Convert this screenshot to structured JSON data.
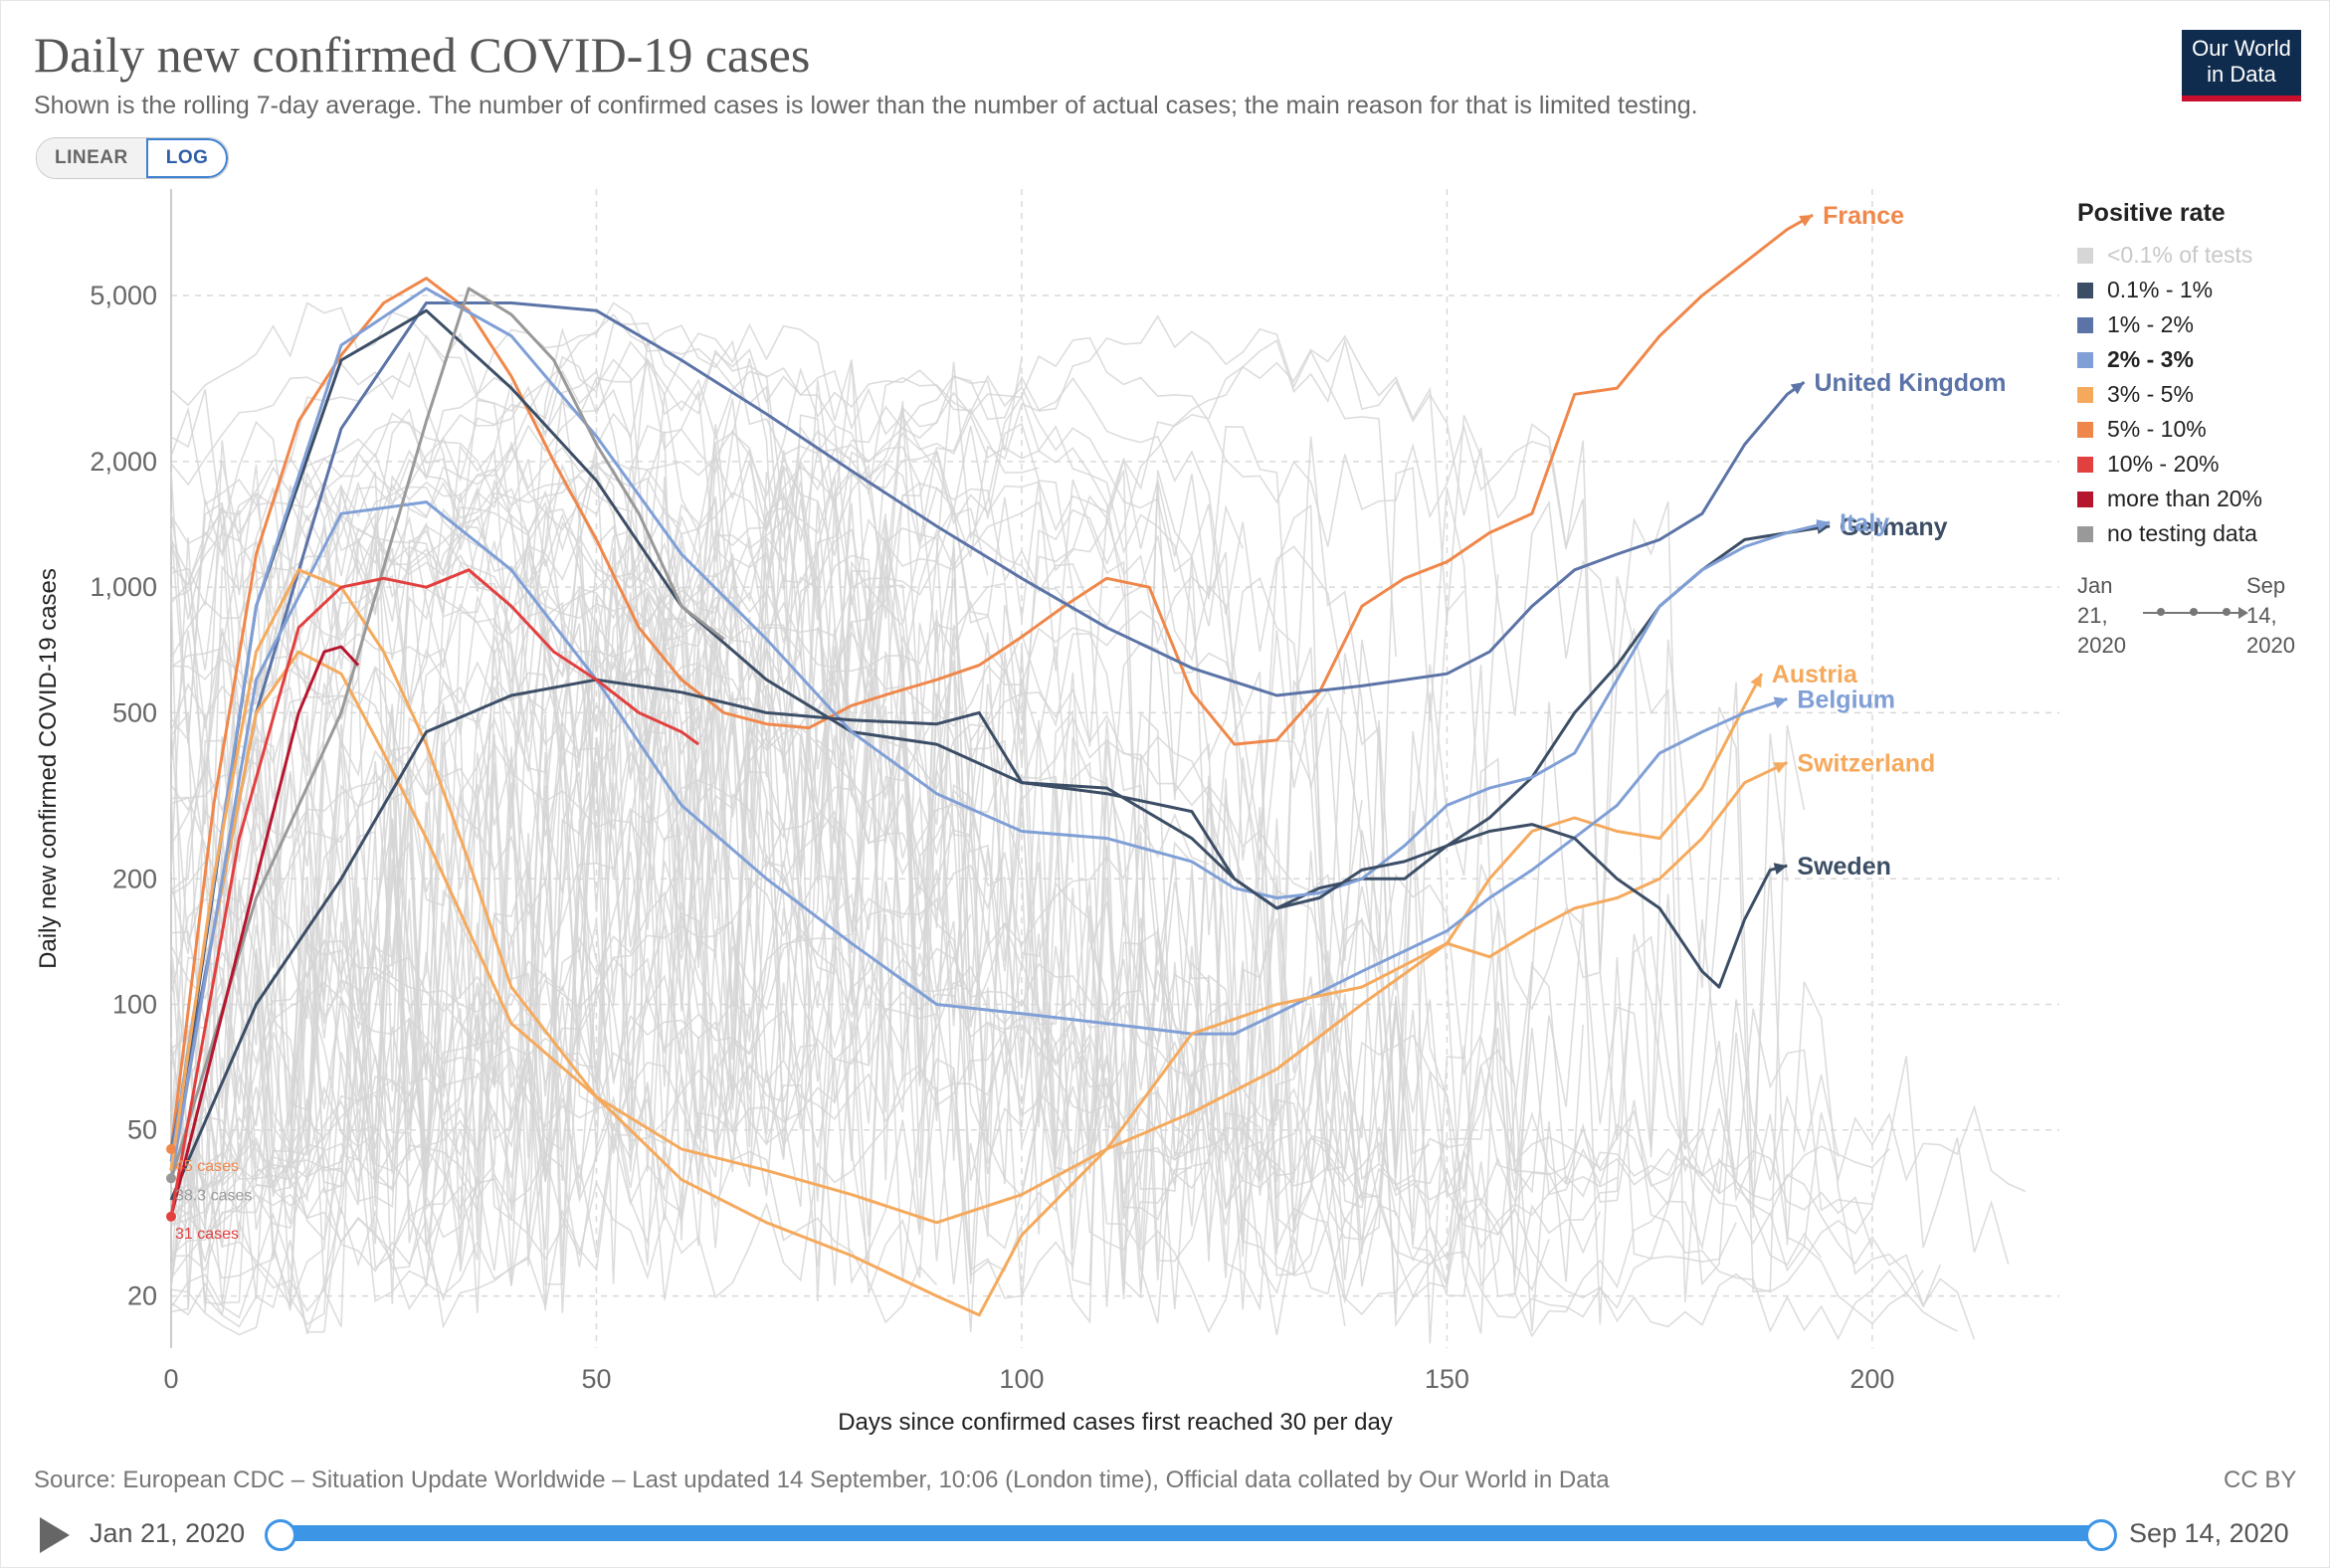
{
  "header": {
    "title": "Daily new confirmed COVID-19 cases",
    "subtitle": "Shown is the rolling 7-day average. The number of confirmed cases is lower than the number of actual cases; the main reason for that is limited testing.",
    "logo_line1": "Our World",
    "logo_line2": "in Data"
  },
  "scale_toggle": {
    "linear_label": "LINEAR",
    "log_label": "LOG",
    "selected": "LOG"
  },
  "legend": {
    "title": "Positive rate",
    "items": [
      {
        "label": "<0.1% of tests",
        "color": "#d6d6d6",
        "muted": true
      },
      {
        "label": "0.1% - 1%",
        "color": "#3c4e66"
      },
      {
        "label": "1% - 2%",
        "color": "#5b73a6"
      },
      {
        "label": "2% - 3%",
        "color": "#7f9fd6",
        "bold": true
      },
      {
        "label": "3% - 5%",
        "color": "#f5a95c"
      },
      {
        "label": "5% - 10%",
        "color": "#f0874a"
      },
      {
        "label": "10% - 20%",
        "color": "#e2403f"
      },
      {
        "label": "more than 20%",
        "color": "#b5162e"
      },
      {
        "label": "no testing data",
        "color": "#999999"
      }
    ],
    "timeline_start": "Jan\n21,\n2020",
    "timeline_end": "Sep\n14,\n2020"
  },
  "footer": {
    "source": "Source: European CDC – Situation Update Worldwide – Last updated 14 September, 10:06 (London time), Official data collated by Our World in Data",
    "license": "CC BY",
    "play_icon": "play-icon",
    "date_start": "Jan 21, 2020",
    "date_end": "Sep 14, 2020",
    "slider_start_fraction": 0,
    "slider_end_fraction": 1
  },
  "chart_data": {
    "type": "line",
    "xlabel": "Days since confirmed cases first reached 30 per day",
    "ylabel": "Daily new confirmed COVID-19 cases",
    "yscale": "log",
    "xlim": [
      0,
      222
    ],
    "ylim": [
      15,
      9000
    ],
    "xticks": [
      0,
      50,
      100,
      150,
      200
    ],
    "yticks": [
      20,
      50,
      100,
      200,
      500,
      1000,
      2000,
      5000
    ],
    "ytick_labels": [
      "20",
      "50",
      "100",
      "200",
      "500",
      "1,000",
      "2,000",
      "5,000"
    ],
    "grid": true,
    "legend_position": "right",
    "start_annotations": [
      {
        "label": "45 cases",
        "y": 45,
        "color": "#f0874a"
      },
      {
        "label": "38.3 cases",
        "y": 38.3,
        "color": "#999999"
      },
      {
        "label": "31 cases",
        "y": 31,
        "color": "#e2403f"
      }
    ],
    "series": [
      {
        "name": "France",
        "color": "#f0874a",
        "label_color": "#f0874a",
        "points": [
          [
            0,
            45
          ],
          [
            5,
            300
          ],
          [
            10,
            1200
          ],
          [
            15,
            2500
          ],
          [
            20,
            3600
          ],
          [
            25,
            4800
          ],
          [
            30,
            5500
          ],
          [
            35,
            4600
          ],
          [
            40,
            3200
          ],
          [
            45,
            2000
          ],
          [
            50,
            1300
          ],
          [
            55,
            800
          ],
          [
            60,
            600
          ],
          [
            65,
            500
          ],
          [
            70,
            470
          ],
          [
            75,
            460
          ],
          [
            80,
            520
          ],
          [
            85,
            560
          ],
          [
            90,
            600
          ],
          [
            95,
            650
          ],
          [
            100,
            760
          ],
          [
            105,
            900
          ],
          [
            110,
            1050
          ],
          [
            115,
            1000
          ],
          [
            120,
            560
          ],
          [
            125,
            420
          ],
          [
            130,
            430
          ],
          [
            135,
            560
          ],
          [
            140,
            900
          ],
          [
            145,
            1050
          ],
          [
            150,
            1150
          ],
          [
            155,
            1350
          ],
          [
            160,
            1500
          ],
          [
            165,
            2900
          ],
          [
            170,
            3000
          ],
          [
            175,
            4000
          ],
          [
            180,
            5000
          ],
          [
            185,
            6000
          ],
          [
            190,
            7200
          ],
          [
            193,
            7800
          ]
        ]
      },
      {
        "name": "United Kingdom",
        "color": "#5b73a6",
        "label_color": "#5b73a6",
        "points": [
          [
            0,
            45
          ],
          [
            10,
            500
          ],
          [
            20,
            2400
          ],
          [
            30,
            4800
          ],
          [
            40,
            4800
          ],
          [
            50,
            4600
          ],
          [
            60,
            3500
          ],
          [
            70,
            2600
          ],
          [
            80,
            1900
          ],
          [
            90,
            1400
          ],
          [
            100,
            1050
          ],
          [
            110,
            800
          ],
          [
            120,
            640
          ],
          [
            130,
            550
          ],
          [
            140,
            580
          ],
          [
            150,
            620
          ],
          [
            155,
            700
          ],
          [
            160,
            900
          ],
          [
            165,
            1100
          ],
          [
            170,
            1200
          ],
          [
            175,
            1300
          ],
          [
            180,
            1500
          ],
          [
            185,
            2200
          ],
          [
            190,
            2900
          ],
          [
            192,
            3100
          ]
        ]
      },
      {
        "name": "Germany",
        "color": "#3c4e66",
        "label_color": "#3c4e66",
        "points": [
          [
            0,
            40
          ],
          [
            10,
            900
          ],
          [
            20,
            3500
          ],
          [
            30,
            4600
          ],
          [
            40,
            3000
          ],
          [
            50,
            1800
          ],
          [
            60,
            900
          ],
          [
            70,
            600
          ],
          [
            80,
            450
          ],
          [
            90,
            420
          ],
          [
            100,
            340
          ],
          [
            110,
            330
          ],
          [
            120,
            250
          ],
          [
            125,
            200
          ],
          [
            130,
            170
          ],
          [
            135,
            190
          ],
          [
            140,
            200
          ],
          [
            145,
            200
          ],
          [
            150,
            240
          ],
          [
            155,
            280
          ],
          [
            160,
            350
          ],
          [
            165,
            500
          ],
          [
            170,
            650
          ],
          [
            175,
            900
          ],
          [
            180,
            1100
          ],
          [
            185,
            1300
          ],
          [
            190,
            1350
          ],
          [
            195,
            1400
          ]
        ]
      },
      {
        "name": "Italy",
        "color": "#7f9fd6",
        "label_color": "#7f9fd6",
        "points": [
          [
            0,
            42
          ],
          [
            10,
            900
          ],
          [
            20,
            3800
          ],
          [
            30,
            5200
          ],
          [
            40,
            4000
          ],
          [
            50,
            2300
          ],
          [
            60,
            1200
          ],
          [
            70,
            750
          ],
          [
            80,
            450
          ],
          [
            90,
            320
          ],
          [
            100,
            260
          ],
          [
            110,
            250
          ],
          [
            120,
            220
          ],
          [
            125,
            190
          ],
          [
            130,
            180
          ],
          [
            135,
            185
          ],
          [
            140,
            200
          ],
          [
            145,
            240
          ],
          [
            150,
            300
          ],
          [
            155,
            330
          ],
          [
            160,
            350
          ],
          [
            165,
            400
          ],
          [
            170,
            600
          ],
          [
            175,
            900
          ],
          [
            180,
            1100
          ],
          [
            185,
            1250
          ],
          [
            190,
            1350
          ],
          [
            195,
            1430
          ]
        ]
      },
      {
        "name": "Austria",
        "color": "#f5a95c",
        "label_color": "#f5a95c",
        "points": [
          [
            0,
            38
          ],
          [
            5,
            150
          ],
          [
            10,
            500
          ],
          [
            15,
            700
          ],
          [
            20,
            620
          ],
          [
            25,
            400
          ],
          [
            30,
            250
          ],
          [
            35,
            150
          ],
          [
            40,
            90
          ],
          [
            50,
            60
          ],
          [
            60,
            45
          ],
          [
            70,
            40
          ],
          [
            80,
            35
          ],
          [
            90,
            30
          ],
          [
            100,
            35
          ],
          [
            110,
            45
          ],
          [
            120,
            55
          ],
          [
            130,
            70
          ],
          [
            140,
            100
          ],
          [
            150,
            140
          ],
          [
            155,
            200
          ],
          [
            160,
            260
          ],
          [
            165,
            280
          ],
          [
            170,
            260
          ],
          [
            175,
            250
          ],
          [
            180,
            330
          ],
          [
            185,
            520
          ],
          [
            187,
            620
          ]
        ]
      },
      {
        "name": "Belgium",
        "color": "#7f9fd6",
        "label_color": "#7f9fd6",
        "points": [
          [
            0,
            38
          ],
          [
            10,
            600
          ],
          [
            20,
            1500
          ],
          [
            30,
            1600
          ],
          [
            40,
            1100
          ],
          [
            50,
            600
          ],
          [
            60,
            300
          ],
          [
            70,
            200
          ],
          [
            80,
            140
          ],
          [
            90,
            100
          ],
          [
            100,
            95
          ],
          [
            110,
            90
          ],
          [
            120,
            85
          ],
          [
            125,
            85
          ],
          [
            130,
            95
          ],
          [
            140,
            120
          ],
          [
            150,
            150
          ],
          [
            155,
            180
          ],
          [
            160,
            210
          ],
          [
            170,
            300
          ],
          [
            175,
            400
          ],
          [
            180,
            450
          ],
          [
            185,
            500
          ],
          [
            190,
            540
          ]
        ]
      },
      {
        "name": "Switzerland",
        "color": "#f5a95c",
        "label_color": "#f5a95c",
        "points": [
          [
            0,
            40
          ],
          [
            5,
            200
          ],
          [
            10,
            700
          ],
          [
            15,
            1100
          ],
          [
            20,
            1000
          ],
          [
            25,
            700
          ],
          [
            30,
            420
          ],
          [
            35,
            220
          ],
          [
            40,
            110
          ],
          [
            50,
            60
          ],
          [
            60,
            38
          ],
          [
            70,
            30
          ],
          [
            80,
            25
          ],
          [
            90,
            20
          ],
          [
            95,
            18
          ],
          [
            100,
            28
          ],
          [
            110,
            45
          ],
          [
            120,
            85
          ],
          [
            130,
            100
          ],
          [
            140,
            110
          ],
          [
            150,
            140
          ],
          [
            155,
            130
          ],
          [
            160,
            150
          ],
          [
            165,
            170
          ],
          [
            170,
            180
          ],
          [
            175,
            200
          ],
          [
            180,
            250
          ],
          [
            185,
            340
          ],
          [
            190,
            380
          ]
        ]
      },
      {
        "name": "Sweden",
        "color": "#3c4e66",
        "label_color": "#3c4e66",
        "points": [
          [
            0,
            34
          ],
          [
            10,
            100
          ],
          [
            20,
            200
          ],
          [
            30,
            450
          ],
          [
            40,
            550
          ],
          [
            50,
            600
          ],
          [
            60,
            560
          ],
          [
            70,
            500
          ],
          [
            80,
            480
          ],
          [
            90,
            470
          ],
          [
            95,
            500
          ],
          [
            100,
            340
          ],
          [
            110,
            320
          ],
          [
            120,
            290
          ],
          [
            125,
            200
          ],
          [
            130,
            170
          ],
          [
            135,
            180
          ],
          [
            140,
            210
          ],
          [
            145,
            220
          ],
          [
            150,
            240
          ],
          [
            155,
            260
          ],
          [
            160,
            270
          ],
          [
            165,
            250
          ],
          [
            170,
            200
          ],
          [
            175,
            170
          ],
          [
            180,
            120
          ],
          [
            182,
            110
          ],
          [
            185,
            160
          ],
          [
            188,
            210
          ],
          [
            190,
            215
          ]
        ]
      },
      {
        "name": "",
        "color": "#999999",
        "label_color": "#999999",
        "points": [
          [
            0,
            38
          ],
          [
            10,
            180
          ],
          [
            20,
            500
          ],
          [
            30,
            2500
          ],
          [
            35,
            5200
          ],
          [
            40,
            4500
          ],
          [
            45,
            3500
          ],
          [
            50,
            2200
          ],
          [
            55,
            1500
          ],
          [
            60,
            900
          ],
          [
            65,
            750
          ]
        ]
      },
      {
        "name": "",
        "color": "#b5162e",
        "label_color": "#b5162e",
        "points": [
          [
            0,
            31
          ],
          [
            10,
            200
          ],
          [
            15,
            500
          ],
          [
            18,
            700
          ],
          [
            20,
            720
          ],
          [
            22,
            650
          ]
        ]
      },
      {
        "name": "",
        "color": "#e2403f",
        "label_color": "#e2403f",
        "points": [
          [
            0,
            31
          ],
          [
            8,
            250
          ],
          [
            15,
            800
          ],
          [
            20,
            1000
          ],
          [
            25,
            1050
          ],
          [
            30,
            1000
          ],
          [
            35,
            1100
          ],
          [
            40,
            900
          ],
          [
            45,
            700
          ],
          [
            50,
            600
          ],
          [
            55,
            500
          ],
          [
            60,
            450
          ],
          [
            62,
            420
          ]
        ]
      }
    ]
  }
}
